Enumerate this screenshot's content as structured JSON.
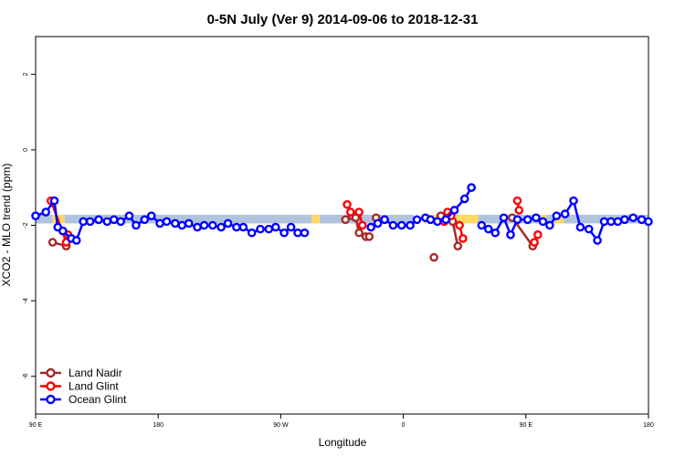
{
  "chart_data": {
    "type": "line",
    "title": "0-5N July (Ver 9)   2014-09-06 to 2018-12-31",
    "xlabel": "Longitude",
    "ylabel": "XCO2 - MLO trend (ppm)",
    "xlim": [
      90,
      450
    ],
    "ylim": [
      -7,
      3
    ],
    "x_ticks": [
      {
        "value": 90,
        "label": "90 E"
      },
      {
        "value": 162,
        "label": "180"
      },
      {
        "value": 234,
        "label": "90 W"
      },
      {
        "value": 306,
        "label": "0"
      },
      {
        "value": 378,
        "label": "90 E"
      },
      {
        "value": 450,
        "label": "180"
      }
    ],
    "y_ticks": [
      -6,
      -4,
      -2,
      0,
      2
    ],
    "grid": false,
    "legend_position": "bottom-left",
    "background_band": {
      "y_range": [
        -1.95,
        -1.72
      ],
      "segments": [
        {
          "x_range": [
            90,
            100
          ],
          "color": "#b0c4de"
        },
        {
          "x_range": [
            100,
            107
          ],
          "color": "#ffd966"
        },
        {
          "x_range": [
            107,
            252
          ],
          "color": "#b0c4de"
        },
        {
          "x_range": [
            252,
            257
          ],
          "color": "#ffd966"
        },
        {
          "x_range": [
            257,
            298
          ],
          "color": "#b0c4de"
        },
        {
          "x_range": [
            298,
            312
          ],
          "color": "#b0c4de"
        },
        {
          "x_range": [
            318,
            350
          ],
          "color": "#ffd966"
        },
        {
          "x_range": [
            350,
            370
          ],
          "color": "#b0c4de"
        },
        {
          "x_range": [
            370,
            387
          ],
          "color": "#b0c4de"
        },
        {
          "x_range": [
            387,
            390
          ],
          "color": "#ffd966"
        },
        {
          "x_range": [
            390,
            395
          ],
          "color": "#b0c4de"
        },
        {
          "x_range": [
            395,
            400
          ],
          "color": "#ffd966"
        },
        {
          "x_range": [
            400,
            450
          ],
          "color": "#b0c4de"
        }
      ]
    },
    "series": [
      {
        "name": "Land Nadir",
        "color": "#a52a2a",
        "x": [
          100,
          108,
          272,
          276,
          278,
          280,
          284,
          286,
          290,
          324,
          328,
          335,
          338,
          370,
          382
        ],
        "y": [
          -2.45,
          -2.55,
          -1.85,
          -1.75,
          -1.8,
          -2.2,
          -2.3,
          -2.3,
          -1.8,
          -2.85,
          -1.75,
          -1.9,
          -2.55,
          -1.8,
          -2.55
        ],
        "segments": [
          [
            0,
            1
          ],
          [
            2,
            3,
            4,
            5,
            6,
            7
          ],
          [
            9
          ],
          [
            10,
            11,
            12
          ],
          [
            13,
            14
          ]
        ]
      },
      {
        "name": "Land Glint",
        "color": "#ff0000",
        "x": [
          99,
          108,
          109,
          273,
          275,
          280,
          282,
          330,
          332,
          334,
          339,
          341,
          373,
          374,
          383,
          385
        ],
        "y": [
          -1.35,
          -2.45,
          -2.25,
          -1.45,
          -1.65,
          -1.65,
          -2.0,
          -1.9,
          -1.65,
          -1.75,
          -2.0,
          -2.35,
          -1.35,
          -1.6,
          -2.45,
          -2.25
        ],
        "segments": [
          [
            0,
            1,
            2
          ],
          [
            3,
            4
          ],
          [
            5,
            6
          ],
          [
            7,
            8,
            9
          ],
          [
            10,
            11
          ],
          [
            12,
            13
          ],
          [
            14,
            15
          ]
        ]
      },
      {
        "name": "Ocean Glint",
        "color": "#0000ff",
        "x": [
          90,
          96,
          101,
          103,
          106,
          111,
          114,
          118,
          122,
          127,
          132,
          136,
          140,
          145,
          149,
          154,
          158,
          163,
          167,
          172,
          176,
          180,
          185,
          189,
          194,
          199,
          203,
          208,
          212,
          217,
          222,
          227,
          231,
          236,
          240,
          244,
          248,
          287,
          291,
          295,
          300,
          305,
          310,
          314,
          319,
          322,
          326,
          331,
          336,
          342,
          346,
          352,
          356,
          360,
          365,
          369,
          373,
          379,
          384,
          388,
          392,
          396,
          401,
          406,
          410,
          415,
          420,
          424,
          428,
          432,
          436,
          441,
          446,
          450
        ],
        "y": [
          -1.75,
          -1.65,
          -1.35,
          -2.05,
          -2.15,
          -2.35,
          -2.4,
          -1.9,
          -1.9,
          -1.85,
          -1.9,
          -1.85,
          -1.9,
          -1.75,
          -2.0,
          -1.85,
          -1.75,
          -1.95,
          -1.9,
          -1.95,
          -2.0,
          -1.95,
          -2.05,
          -2.0,
          -2.0,
          -2.05,
          -1.95,
          -2.05,
          -2.05,
          -2.2,
          -2.1,
          -2.1,
          -2.05,
          -2.2,
          -2.05,
          -2.2,
          -2.2,
          -2.05,
          -1.95,
          -1.85,
          -2.0,
          -2.0,
          -2.0,
          -1.85,
          -1.8,
          -1.85,
          -1.9,
          -1.85,
          -1.6,
          -1.3,
          -1.0,
          -2.0,
          -2.1,
          -2.2,
          -1.8,
          -2.25,
          -1.85,
          -1.85,
          -1.8,
          -1.9,
          -2.0,
          -1.75,
          -1.7,
          -1.35,
          -2.05,
          -2.1,
          -2.4,
          -1.9,
          -1.9,
          -1.9,
          -1.85,
          -1.8,
          -1.85,
          -1.9
        ],
        "segments": [
          [
            0,
            1,
            2,
            3,
            4,
            5,
            6,
            7,
            8,
            9,
            10,
            11,
            12,
            13,
            14,
            15,
            16,
            17,
            18,
            19,
            20,
            21,
            22,
            23,
            24,
            25,
            26,
            27,
            28,
            29,
            30,
            31,
            32,
            33,
            34,
            35,
            36
          ],
          [
            37,
            38,
            39,
            40,
            41,
            42,
            43,
            44,
            45,
            46,
            47,
            48,
            49,
            50
          ],
          [
            51,
            52,
            53,
            54,
            55,
            56,
            57,
            58,
            59,
            60,
            61,
            62,
            63,
            64,
            65,
            66,
            67,
            68,
            69,
            70,
            71,
            72,
            73
          ]
        ]
      }
    ]
  }
}
